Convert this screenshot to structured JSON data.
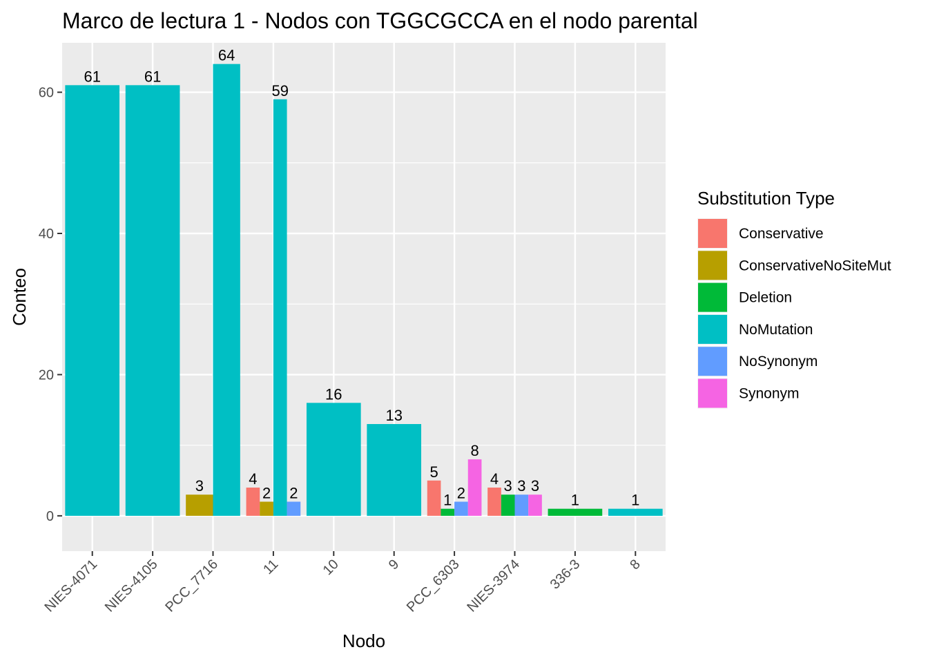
{
  "chart_data": {
    "type": "bar",
    "title": "Marco de lectura 1 - Nodos con TGGCGCCA en el nodo parental",
    "xlabel": "Nodo",
    "ylabel": "Conteo",
    "ylim": [
      -5,
      67
    ],
    "yticks": [
      0,
      20,
      40,
      60
    ],
    "grid": true,
    "categories": [
      "NIES-4071",
      "NIES-4105",
      "PCC_7716",
      "11",
      "10",
      "9",
      "PCC_6303",
      "NIES-3974",
      "336-3",
      "8"
    ],
    "legend": {
      "title": "Substitution Type",
      "position": "right",
      "items": [
        {
          "name": "Conservative",
          "color": "#F8766D"
        },
        {
          "name": "ConservativeNoSiteMut",
          "color": "#B79F00"
        },
        {
          "name": "Deletion",
          "color": "#00BA38"
        },
        {
          "name": "NoMutation",
          "color": "#00BFC4"
        },
        {
          "name": "NoSynonym",
          "color": "#619CFF"
        },
        {
          "name": "Synonym",
          "color": "#F564E3"
        }
      ]
    },
    "groups": [
      {
        "category": "NIES-4071",
        "bars": [
          {
            "type": "NoMutation",
            "value": 61
          }
        ]
      },
      {
        "category": "NIES-4105",
        "bars": [
          {
            "type": "NoMutation",
            "value": 61
          }
        ]
      },
      {
        "category": "PCC_7716",
        "bars": [
          {
            "type": "ConservativeNoSiteMut",
            "value": 3
          },
          {
            "type": "NoMutation",
            "value": 64
          }
        ]
      },
      {
        "category": "11",
        "bars": [
          {
            "type": "Conservative",
            "value": 4
          },
          {
            "type": "ConservativeNoSiteMut",
            "value": 2
          },
          {
            "type": "NoMutation",
            "value": 59
          },
          {
            "type": "NoSynonym",
            "value": 2
          }
        ]
      },
      {
        "category": "10",
        "bars": [
          {
            "type": "NoMutation",
            "value": 16
          }
        ]
      },
      {
        "category": "9",
        "bars": [
          {
            "type": "NoMutation",
            "value": 13
          }
        ]
      },
      {
        "category": "PCC_6303",
        "bars": [
          {
            "type": "Conservative",
            "value": 5
          },
          {
            "type": "Deletion",
            "value": 1
          },
          {
            "type": "NoSynonym",
            "value": 2
          },
          {
            "type": "Synonym",
            "value": 8
          }
        ]
      },
      {
        "category": "NIES-3974",
        "bars": [
          {
            "type": "Conservative",
            "value": 4
          },
          {
            "type": "Deletion",
            "value": 3
          },
          {
            "type": "NoSynonym",
            "value": 3
          },
          {
            "type": "Synonym",
            "value": 3
          }
        ]
      },
      {
        "category": "336-3",
        "bars": [
          {
            "type": "Deletion",
            "value": 1
          }
        ]
      },
      {
        "category": "8",
        "bars": [
          {
            "type": "NoMutation",
            "value": 1
          }
        ]
      }
    ]
  }
}
